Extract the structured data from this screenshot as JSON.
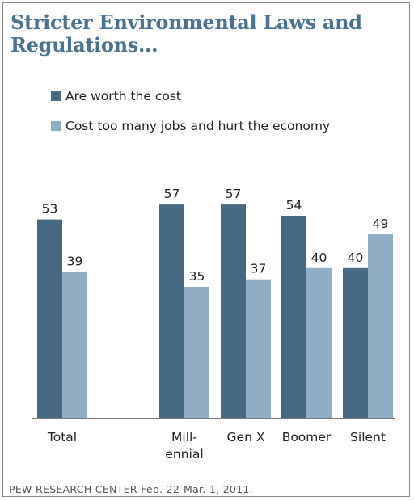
{
  "title": "Stricter Environmental Laws and Regulations...",
  "source": "PEW RESEARCH CENTER Feb. 22-Mar. 1, 2011.",
  "colors": {
    "worth": "#466a84",
    "cost": "#8faec5",
    "title": "#4a7390"
  },
  "chart_data": {
    "type": "bar",
    "title": "Stricter Environmental Laws and Regulations...",
    "categories": [
      [
        "Total"
      ],
      [
        "Mill-",
        "ennial"
      ],
      [
        "Gen X"
      ],
      [
        "Boomer"
      ],
      [
        "Silent"
      ]
    ],
    "series": [
      {
        "name": "Are worth the cost",
        "values": [
          53,
          57,
          57,
          54,
          40
        ]
      },
      {
        "name": "Cost too many jobs and hurt the economy",
        "values": [
          39,
          35,
          37,
          40,
          49
        ]
      }
    ],
    "xlabel": "",
    "ylabel": "",
    "ylim": [
      0,
      70
    ],
    "grid": false,
    "legend": "top-left"
  }
}
